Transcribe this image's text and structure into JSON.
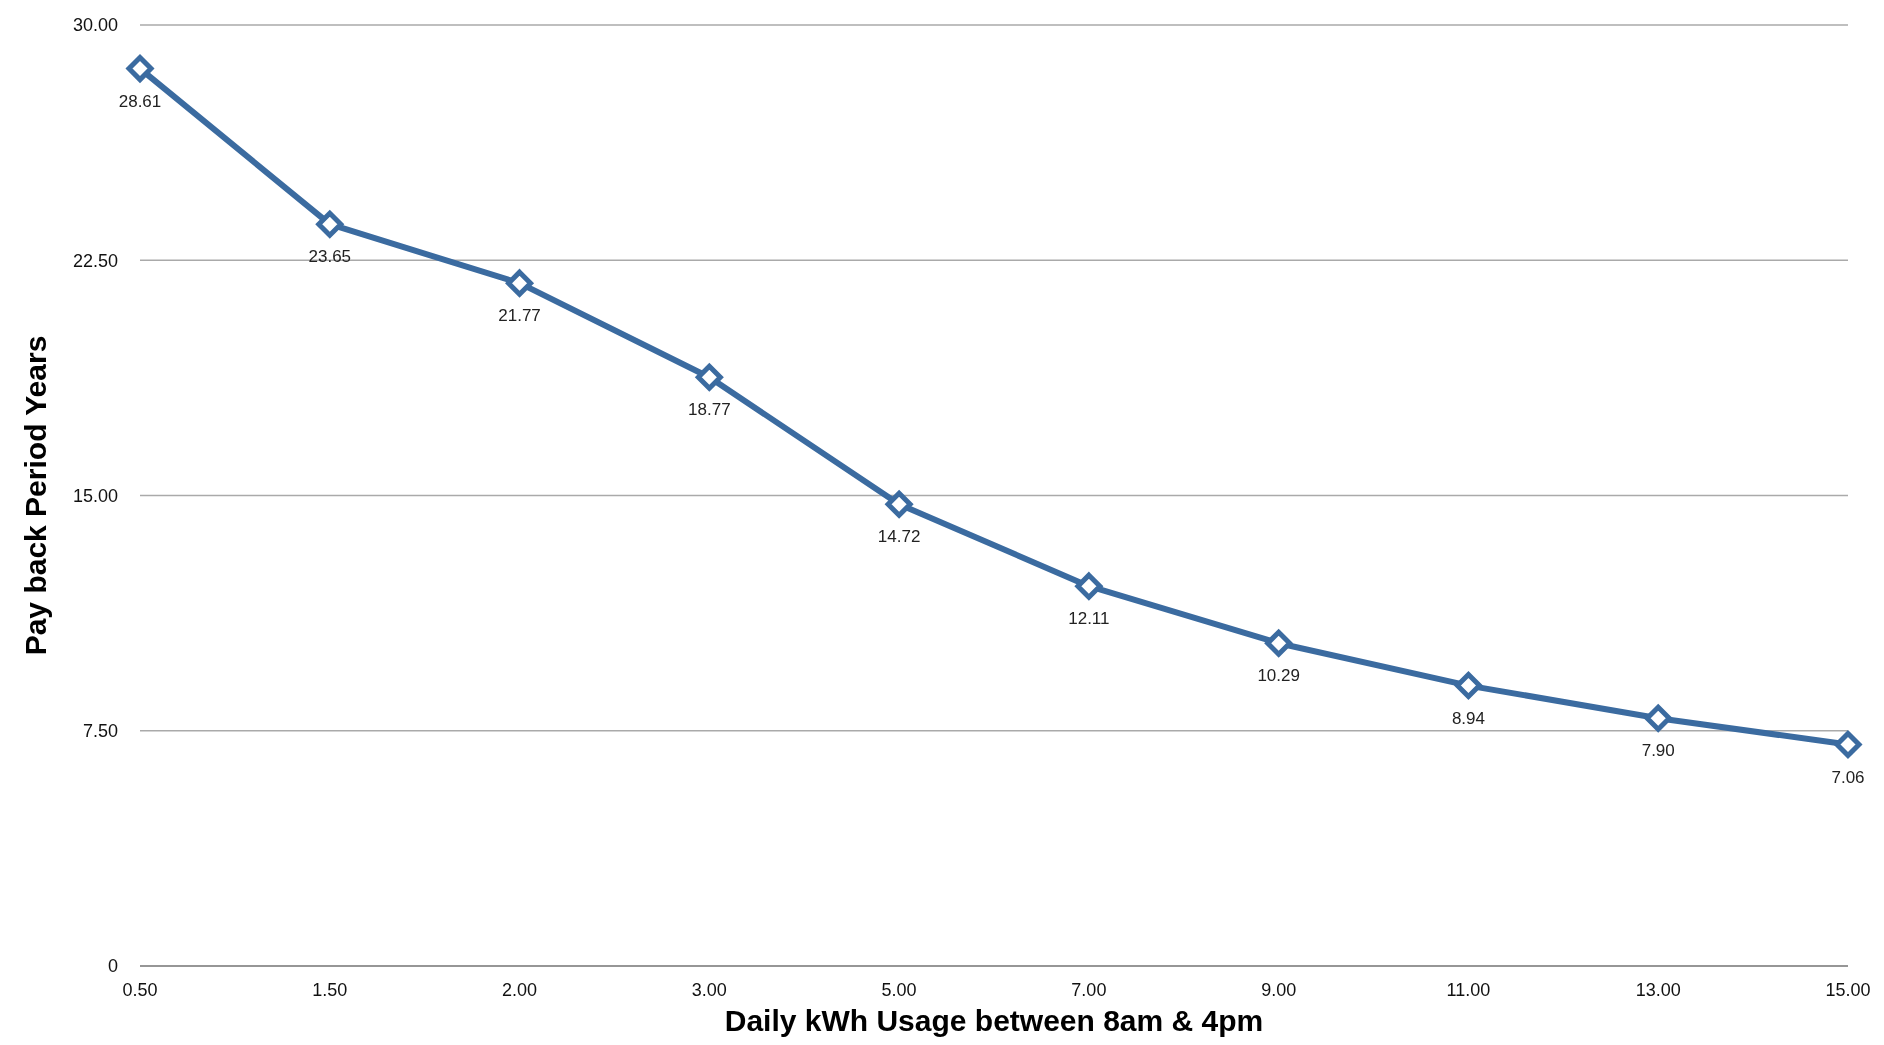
{
  "chart_data": {
    "type": "line",
    "xlabel": "Daily  kWh  Usage  between  8am & 4pm",
    "ylabel": "Pay back Period Years",
    "categories": [
      "0.50",
      "1.50",
      "2.00",
      "3.00",
      "5.00",
      "7.00",
      "9.00",
      "11.00",
      "13.00",
      "15.00"
    ],
    "series": [
      {
        "color": "#3b6ba0",
        "values": [
          28.61,
          23.65,
          21.77,
          18.77,
          14.72,
          12.11,
          10.29,
          8.94,
          7.9,
          7.06
        ],
        "value_labels": [
          "28.61",
          "23.65",
          "21.77",
          "18.77",
          "14.72",
          "12.11",
          "10.29",
          "8.94",
          "7.90",
          "7.06"
        ]
      }
    ],
    "ylim": [
      0,
      30
    ],
    "yticks": [
      0,
      {
        "value": 7.5,
        "label": "7.50"
      },
      {
        "value": 15,
        "label": "15.00"
      },
      {
        "value": 22.5,
        "label": "22.50"
      },
      {
        "value": 30,
        "label": "30.00"
      }
    ],
    "grid": "y",
    "marker": "diamond",
    "line_style": "solid"
  }
}
